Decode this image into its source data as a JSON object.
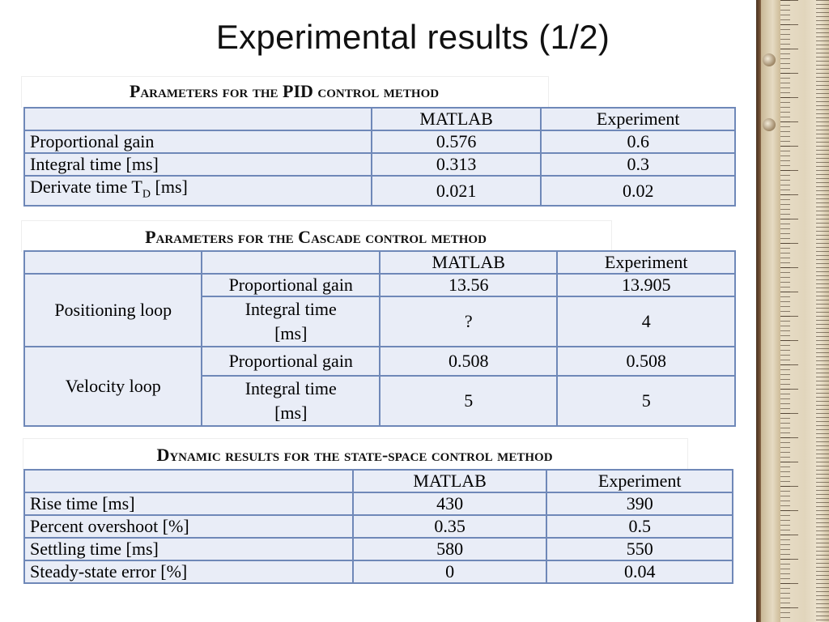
{
  "slide": {
    "title": "Experimental results (1/2)"
  },
  "pid_table": {
    "caption": "Parameters for the PID control method",
    "headers": [
      "",
      "MATLAB",
      "Experiment"
    ],
    "rows": [
      {
        "label": "Proportional gain",
        "matlab": "0.576",
        "experiment": "0.6"
      },
      {
        "label": "Integral time [ms]",
        "matlab": "0.313",
        "experiment": "0.3"
      },
      {
        "label_main": "Derivate time T",
        "label_sub": "D",
        "label_tail": " [ms]",
        "matlab": "0.021",
        "experiment": "0.02"
      }
    ]
  },
  "cascade_table": {
    "caption": "Parameters for the Cascade control method",
    "headers": [
      "",
      "",
      "MATLAB",
      "Experiment"
    ],
    "groups": [
      {
        "name": "Positioning loop",
        "rows": [
          {
            "param": "Proportional gain",
            "matlab": "13.56",
            "experiment": "13.905"
          },
          {
            "param_line1": "Integral time",
            "param_line2": "[ms]",
            "matlab": "?",
            "experiment": "4"
          }
        ]
      },
      {
        "name": "Velocity loop",
        "rows": [
          {
            "param": "Proportional gain",
            "matlab": "0.508",
            "experiment": "0.508"
          },
          {
            "param_line1": "Integral time",
            "param_line2": "[ms]",
            "matlab": "5",
            "experiment": "5"
          }
        ]
      }
    ]
  },
  "state_table": {
    "caption": "Dynamic results for the state-space control method",
    "headers": [
      "",
      "MATLAB",
      "Experiment"
    ],
    "rows": [
      {
        "label": "Rise time  [ms]",
        "matlab": "430",
        "experiment": "390"
      },
      {
        "label": "Percent overshoot  [%]",
        "matlab": "0.35",
        "experiment": "0.5"
      },
      {
        "label": "Settling time  [ms]",
        "matlab": "580",
        "experiment": "550"
      },
      {
        "label": "Steady-state error [%]",
        "matlab": "0",
        "experiment": "0.04"
      }
    ]
  }
}
